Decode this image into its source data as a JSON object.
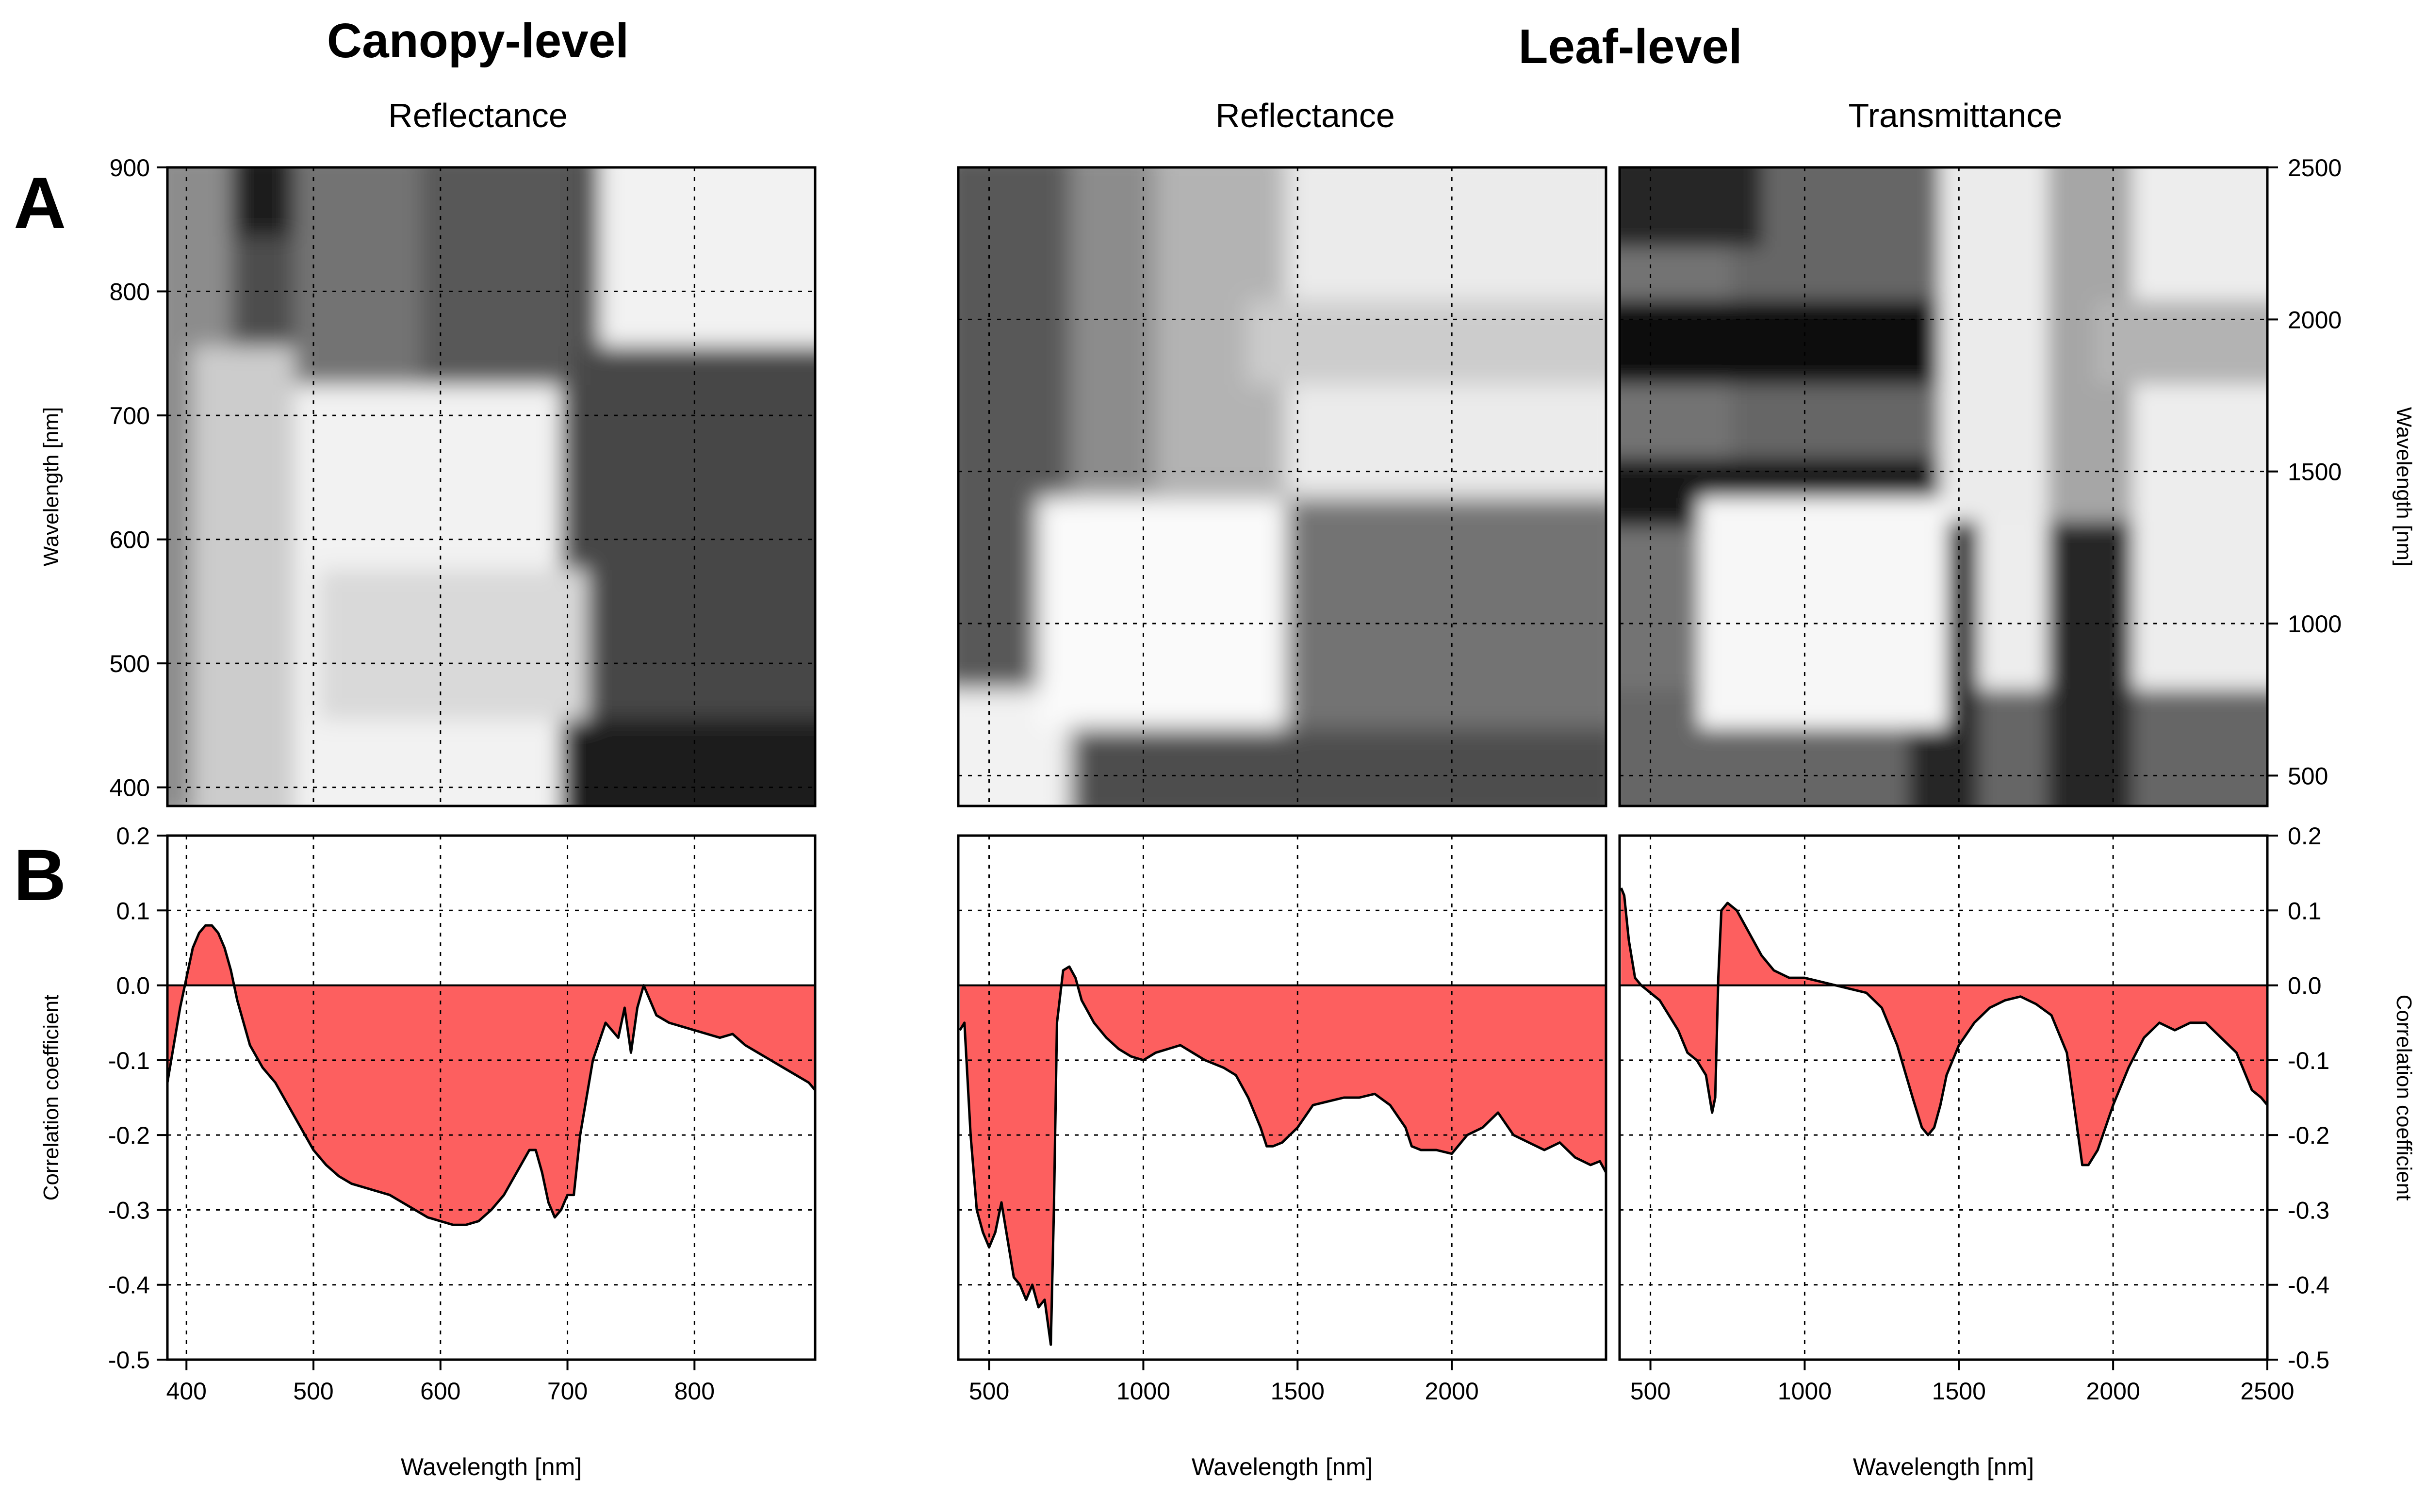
{
  "header": {
    "canopy_title": "Canopy-level",
    "leaf_title": "Leaf-level",
    "canopy_sub": "Reflectance",
    "leaf_refl_sub": "Reflectance",
    "leaf_trans_sub": "Transmittance",
    "label_a": "A",
    "label_b": "B"
  },
  "colors": {
    "fill": "#fd5f5f",
    "line": "#000000",
    "grid": "#000000",
    "heat_dark": "#000000",
    "heat_light": "#ffffff"
  },
  "chart_data": [
    {
      "panel": "A-canopy",
      "type": "heatmap",
      "title": "Reflectance",
      "xlabel": "",
      "ylabel": "Wavelength [nm]",
      "xlim": [
        385,
        895
      ],
      "ylim": [
        385,
        900
      ],
      "yticks": [
        400,
        500,
        600,
        700,
        800,
        900
      ],
      "grid": true,
      "grayscale": "dark = strong, white = weak",
      "blocks": [
        {
          "x": [
            385,
            900
          ],
          "y": [
            385,
            900
          ],
          "shade": 0.95
        },
        {
          "x": [
            385,
            710
          ],
          "y": [
            740,
            900
          ],
          "shade": 0.3
        },
        {
          "x": [
            710,
            900
          ],
          "y": [
            385,
            740
          ],
          "shade": 0.28
        },
        {
          "x": [
            385,
            500
          ],
          "y": [
            860,
            900
          ],
          "shade": 0.1
        },
        {
          "x": [
            710,
            900
          ],
          "y": [
            385,
            440
          ],
          "shade": 0.1
        },
        {
          "x": [
            385,
            420
          ],
          "y": [
            390,
            900
          ],
          "shade": 0.55
        },
        {
          "x": [
            500,
            600
          ],
          "y": [
            740,
            900
          ],
          "shade": 0.45
        },
        {
          "x": [
            600,
            690
          ],
          "y": [
            740,
            900
          ],
          "shade": 0.35
        },
        {
          "x": [
            420,
            470
          ],
          "y": [
            385,
            740
          ],
          "shade": 0.8
        },
        {
          "x": [
            520,
            700
          ],
          "y": [
            470,
            560
          ],
          "shade": 0.85
        }
      ]
    },
    {
      "panel": "A-leaf-reflectance",
      "type": "heatmap",
      "title": "Reflectance",
      "xlim": [
        400,
        2500
      ],
      "ylim": [
        400,
        2500
      ],
      "grid": true,
      "blocks": [
        {
          "x": [
            400,
            2500
          ],
          "y": [
            400,
            2500
          ],
          "shade": 0.92
        },
        {
          "x": [
            400,
            1400
          ],
          "y": [
            1350,
            2500
          ],
          "shade": 0.55
        },
        {
          "x": [
            400,
            700
          ],
          "y": [
            400,
            2500
          ],
          "shade": 0.35
        },
        {
          "x": [
            400,
            2500
          ],
          "y": [
            400,
            720
          ],
          "shade": 0.3
        },
        {
          "x": [
            1400,
            2500
          ],
          "y": [
            720,
            1350
          ],
          "shade": 0.45
        },
        {
          "x": [
            1100,
            1400
          ],
          "y": [
            1500,
            2500
          ],
          "shade": 0.7
        },
        {
          "x": [
            1400,
            2500
          ],
          "y": [
            1850,
            2000
          ],
          "shade": 0.8
        },
        {
          "x": [
            400,
            700
          ],
          "y": [
            400,
            720
          ],
          "shade": 0.95
        },
        {
          "x": [
            720,
            1400
          ],
          "y": [
            720,
            1350
          ],
          "shade": 0.98
        }
      ]
    },
    {
      "panel": "A-leaf-transmittance",
      "type": "heatmap",
      "title": "Transmittance",
      "ylabel": "Wavelength [nm]",
      "xlim": [
        400,
        2500
      ],
      "ylim": [
        400,
        2500
      ],
      "yticks": [
        500,
        1000,
        1500,
        2000,
        2500
      ],
      "grid": true,
      "blocks": [
        {
          "x": [
            400,
            2500
          ],
          "y": [
            400,
            2500
          ],
          "shade": 0.93
        },
        {
          "x": [
            400,
            1400
          ],
          "y": [
            1350,
            2500
          ],
          "shade": 0.4
        },
        {
          "x": [
            400,
            700
          ],
          "y": [
            400,
            2500
          ],
          "shade": 0.45
        },
        {
          "x": [
            400,
            2500
          ],
          "y": [
            400,
            720
          ],
          "shade": 0.4
        },
        {
          "x": [
            1400,
            1500
          ],
          "y": [
            400,
            1350
          ],
          "shade": 0.15
        },
        {
          "x": [
            1850,
            2000
          ],
          "y": [
            400,
            1350
          ],
          "shade": 0.15
        },
        {
          "x": [
            400,
            1400
          ],
          "y": [
            1850,
            2000
          ],
          "shade": 0.05
        },
        {
          "x": [
            400,
            1400
          ],
          "y": [
            1380,
            1480
          ],
          "shade": 0.08
        },
        {
          "x": [
            400,
            800
          ],
          "y": [
            2300,
            2500
          ],
          "shade": 0.15
        },
        {
          "x": [
            1500,
            1850
          ],
          "y": [
            1400,
            2500
          ],
          "shade": 0.92
        },
        {
          "x": [
            1850,
            2000
          ],
          "y": [
            1400,
            2500
          ],
          "shade": 0.65
        },
        {
          "x": [
            2000,
            2500
          ],
          "y": [
            1850,
            2000
          ],
          "shade": 0.7
        },
        {
          "x": [
            720,
            1400
          ],
          "y": [
            720,
            1350
          ],
          "shade": 0.97
        }
      ]
    },
    {
      "panel": "B-canopy",
      "type": "area",
      "xlabel": "Wavelength [nm]",
      "ylabel": "Correlation coefficient",
      "xlim": [
        385,
        895
      ],
      "ylim": [
        -0.5,
        0.2
      ],
      "xticks": [
        400,
        500,
        600,
        700,
        800
      ],
      "yticks": [
        -0.5,
        -0.4,
        -0.3,
        -0.2,
        -0.1,
        0.0,
        0.1,
        0.2
      ],
      "ytick_labels": [
        "-0.5",
        "-0.4",
        "-0.3",
        "-0.2",
        "-0.1",
        "0.0",
        "0.1",
        "0.2"
      ],
      "grid": true,
      "x": [
        385,
        390,
        395,
        400,
        405,
        410,
        415,
        420,
        425,
        430,
        435,
        440,
        445,
        450,
        460,
        470,
        480,
        490,
        500,
        510,
        520,
        530,
        540,
        550,
        560,
        570,
        580,
        590,
        600,
        610,
        620,
        630,
        640,
        650,
        660,
        670,
        675,
        680,
        685,
        690,
        695,
        700,
        705,
        710,
        720,
        730,
        740,
        745,
        750,
        755,
        760,
        765,
        770,
        780,
        790,
        800,
        810,
        820,
        830,
        840,
        850,
        860,
        870,
        880,
        890,
        895
      ],
      "y": [
        -0.13,
        -0.08,
        -0.03,
        0.01,
        0.05,
        0.07,
        0.08,
        0.08,
        0.07,
        0.05,
        0.02,
        -0.02,
        -0.05,
        -0.08,
        -0.11,
        -0.13,
        -0.16,
        -0.19,
        -0.22,
        -0.24,
        -0.255,
        -0.265,
        -0.27,
        -0.275,
        -0.28,
        -0.29,
        -0.3,
        -0.31,
        -0.315,
        -0.32,
        -0.32,
        -0.315,
        -0.3,
        -0.28,
        -0.25,
        -0.22,
        -0.22,
        -0.25,
        -0.29,
        -0.31,
        -0.3,
        -0.28,
        -0.28,
        -0.2,
        -0.1,
        -0.05,
        -0.07,
        -0.03,
        -0.09,
        -0.03,
        0.0,
        -0.02,
        -0.04,
        -0.05,
        -0.055,
        -0.06,
        -0.065,
        -0.07,
        -0.065,
        -0.08,
        -0.09,
        -0.1,
        -0.11,
        -0.12,
        -0.13,
        -0.14
      ]
    },
    {
      "panel": "B-leaf-reflectance",
      "type": "area",
      "xlabel": "Wavelength [nm]",
      "xlim": [
        400,
        2500
      ],
      "ylim": [
        -0.5,
        0.2
      ],
      "xticks": [
        500,
        1000,
        1500,
        2000
      ],
      "grid": true,
      "x": [
        405,
        420,
        440,
        460,
        480,
        500,
        520,
        540,
        560,
        580,
        600,
        620,
        640,
        660,
        680,
        700,
        710,
        720,
        740,
        760,
        780,
        800,
        840,
        880,
        920,
        960,
        1000,
        1040,
        1080,
        1120,
        1160,
        1200,
        1260,
        1300,
        1340,
        1380,
        1400,
        1420,
        1450,
        1500,
        1550,
        1600,
        1650,
        1700,
        1750,
        1800,
        1850,
        1870,
        1900,
        1950,
        2000,
        2050,
        2100,
        2150,
        2200,
        2250,
        2300,
        2350,
        2400,
        2450,
        2480,
        2500
      ],
      "y": [
        -0.06,
        -0.05,
        -0.2,
        -0.3,
        -0.33,
        -0.35,
        -0.33,
        -0.29,
        -0.34,
        -0.39,
        -0.4,
        -0.42,
        -0.4,
        -0.43,
        -0.42,
        -0.48,
        -0.3,
        -0.05,
        0.02,
        0.025,
        0.01,
        -0.02,
        -0.05,
        -0.07,
        -0.085,
        -0.095,
        -0.1,
        -0.09,
        -0.085,
        -0.08,
        -0.09,
        -0.1,
        -0.11,
        -0.12,
        -0.15,
        -0.19,
        -0.215,
        -0.215,
        -0.21,
        -0.19,
        -0.16,
        -0.155,
        -0.15,
        -0.15,
        -0.145,
        -0.16,
        -0.19,
        -0.215,
        -0.22,
        -0.22,
        -0.225,
        -0.2,
        -0.19,
        -0.17,
        -0.2,
        -0.21,
        -0.22,
        -0.21,
        -0.23,
        -0.24,
        -0.235,
        -0.25
      ]
    },
    {
      "panel": "B-leaf-transmittance",
      "type": "area",
      "xlabel": "Wavelength [nm]",
      "ylabel": "Correlation coefficient",
      "xlim": [
        400,
        2500
      ],
      "ylim": [
        -0.5,
        0.2
      ],
      "xticks": [
        500,
        1000,
        1500,
        2000,
        2500
      ],
      "yticks": [
        -0.5,
        -0.4,
        -0.3,
        -0.2,
        -0.1,
        0.0,
        0.1,
        0.2
      ],
      "ytick_labels": [
        "-0.5",
        "-0.4",
        "-0.3",
        "-0.2",
        "-0.1",
        "0.0",
        "0.1",
        "0.2"
      ],
      "grid": true,
      "x": [
        405,
        415,
        430,
        450,
        470,
        500,
        530,
        560,
        590,
        620,
        650,
        680,
        700,
        710,
        720,
        730,
        750,
        780,
        820,
        860,
        900,
        950,
        1000,
        1050,
        1100,
        1150,
        1200,
        1250,
        1300,
        1350,
        1380,
        1400,
        1420,
        1440,
        1460,
        1500,
        1550,
        1600,
        1650,
        1700,
        1750,
        1800,
        1850,
        1880,
        1900,
        1920,
        1950,
        2000,
        2050,
        2100,
        2150,
        2200,
        2250,
        2300,
        2350,
        2400,
        2430,
        2450,
        2480,
        2500
      ],
      "y": [
        0.13,
        0.12,
        0.06,
        0.01,
        0.0,
        -0.01,
        -0.02,
        -0.04,
        -0.06,
        -0.09,
        -0.1,
        -0.12,
        -0.17,
        -0.15,
        0.01,
        0.1,
        0.11,
        0.1,
        0.07,
        0.04,
        0.02,
        0.01,
        0.01,
        0.005,
        0.0,
        -0.005,
        -0.01,
        -0.03,
        -0.08,
        -0.15,
        -0.19,
        -0.2,
        -0.19,
        -0.16,
        -0.12,
        -0.08,
        -0.05,
        -0.03,
        -0.02,
        -0.015,
        -0.025,
        -0.04,
        -0.09,
        -0.18,
        -0.24,
        -0.24,
        -0.22,
        -0.16,
        -0.11,
        -0.07,
        -0.05,
        -0.06,
        -0.05,
        -0.05,
        -0.07,
        -0.09,
        -0.12,
        -0.14,
        -0.15,
        -0.16
      ]
    }
  ]
}
